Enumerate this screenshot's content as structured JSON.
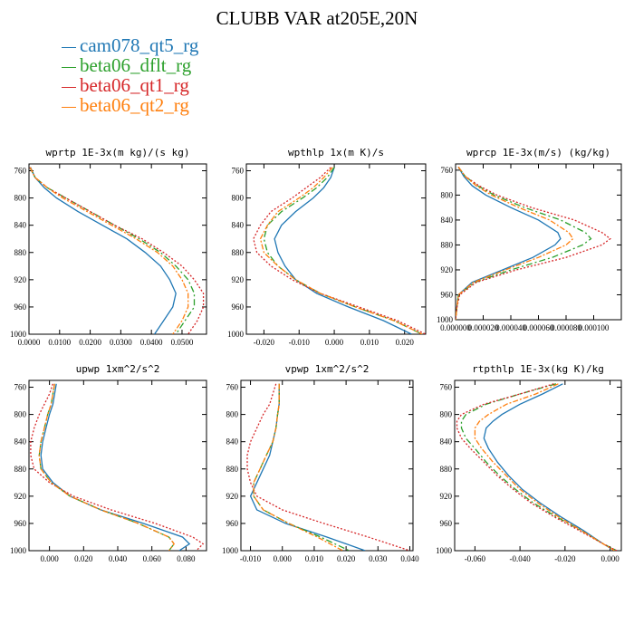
{
  "title": "CLUBB VAR at205E,20N",
  "legend": [
    {
      "name": "cam078_qt5_rg",
      "color": "#1f77b4"
    },
    {
      "name": "beta06_dflt_rg",
      "color": "#2ca02c"
    },
    {
      "name": "beta06_qt1_rg",
      "color": "#d62728"
    },
    {
      "name": "beta06_qt2_rg",
      "color": "#ff7f0e"
    }
  ],
  "chart_data": [
    {
      "type": "line",
      "title": "wprtp  1E-3x(m kg)/(s kg)",
      "xlim": [
        0.0,
        0.058
      ],
      "ylim": [
        1000,
        750
      ],
      "y_reversed": true,
      "xticks": [
        "0.0000",
        "0.0100",
        "0.0200",
        "0.0300",
        "0.0400",
        "0.0500"
      ],
      "xtick_values": [
        0.0,
        0.01,
        0.02,
        0.03,
        0.04,
        0.05
      ],
      "yticks": [
        760,
        800,
        840,
        880,
        920,
        960,
        1000
      ],
      "pressure": [
        755,
        770,
        785,
        800,
        820,
        840,
        860,
        880,
        900,
        920,
        940,
        960,
        980,
        1000
      ],
      "series": [
        {
          "name": "cam078_qt5_rg",
          "values": [
            0.0005,
            0.002,
            0.005,
            0.009,
            0.016,
            0.024,
            0.032,
            0.038,
            0.043,
            0.046,
            0.048,
            0.047,
            0.044,
            0.041
          ]
        },
        {
          "name": "beta06_dflt_rg",
          "values": [
            0.0003,
            0.002,
            0.006,
            0.012,
            0.02,
            0.028,
            0.036,
            0.043,
            0.048,
            0.052,
            0.054,
            0.054,
            0.051,
            0.048
          ]
        },
        {
          "name": "beta06_qt1_rg",
          "values": [
            0.0003,
            0.002,
            0.006,
            0.012,
            0.02,
            0.028,
            0.037,
            0.044,
            0.05,
            0.054,
            0.057,
            0.057,
            0.055,
            0.052
          ]
        },
        {
          "name": "beta06_qt2_rg",
          "values": [
            0.0004,
            0.002,
            0.006,
            0.011,
            0.019,
            0.027,
            0.035,
            0.042,
            0.047,
            0.05,
            0.052,
            0.052,
            0.05,
            0.047
          ]
        }
      ]
    },
    {
      "type": "line",
      "title": "wpthlp  1x(m K)/s",
      "xlim": [
        -0.025,
        0.026
      ],
      "ylim": [
        1000,
        750
      ],
      "y_reversed": true,
      "xticks": [
        "-0.020",
        "-0.010",
        "0.000",
        "0.010",
        "0.020"
      ],
      "xtick_values": [
        -0.02,
        -0.01,
        0.0,
        0.01,
        0.02
      ],
      "yticks": [
        760,
        800,
        840,
        880,
        920,
        960,
        1000
      ],
      "pressure": [
        755,
        770,
        785,
        800,
        820,
        840,
        860,
        880,
        900,
        920,
        940,
        960,
        980,
        1000
      ],
      "series": [
        {
          "name": "cam078_qt5_rg",
          "values": [
            0.0,
            -0.001,
            -0.003,
            -0.006,
            -0.011,
            -0.015,
            -0.017,
            -0.016,
            -0.014,
            -0.011,
            -0.005,
            0.004,
            0.014,
            0.022
          ]
        },
        {
          "name": "beta06_dflt_rg",
          "values": [
            0.0,
            -0.002,
            -0.005,
            -0.009,
            -0.015,
            -0.019,
            -0.02,
            -0.019,
            -0.016,
            -0.011,
            -0.004,
            0.006,
            0.017,
            0.025
          ]
        },
        {
          "name": "beta06_qt1_rg",
          "values": [
            -0.001,
            -0.004,
            -0.008,
            -0.012,
            -0.018,
            -0.021,
            -0.023,
            -0.022,
            -0.018,
            -0.012,
            -0.004,
            0.007,
            0.018,
            0.026
          ]
        },
        {
          "name": "beta06_qt2_rg",
          "values": [
            -0.0005,
            -0.003,
            -0.006,
            -0.01,
            -0.016,
            -0.019,
            -0.021,
            -0.02,
            -0.016,
            -0.011,
            -0.004,
            0.006,
            0.017,
            0.025
          ]
        }
      ]
    },
    {
      "type": "line",
      "title": "wprcp  1E-3x(m/s) (kg/kg)",
      "xlim": [
        0.0,
        0.00012
      ],
      "ylim": [
        1000,
        750
      ],
      "y_reversed": true,
      "xticks": [
        "0.000000",
        "0.000020",
        "0.000040",
        "0.000060",
        "0.000080",
        "0.000100"
      ],
      "xtick_values": [
        0.0,
        2e-05,
        4e-05,
        6e-05,
        8e-05,
        0.0001
      ],
      "yticks": [
        760,
        800,
        840,
        880,
        920,
        960,
        1000
      ],
      "pressure": [
        755,
        770,
        785,
        800,
        820,
        840,
        860,
        870,
        880,
        900,
        920,
        940,
        960,
        980,
        1000
      ],
      "series": [
        {
          "name": "cam078_qt5_rg",
          "values": [
            2e-06,
            6e-06,
            1.2e-05,
            2.2e-05,
            4e-05,
            6e-05,
            7.4e-05,
            7.6e-05,
            7.2e-05,
            5.6e-05,
            3.4e-05,
            1.2e-05,
            2e-06,
            1e-06,
            0.0
          ]
        },
        {
          "name": "beta06_dflt_rg",
          "values": [
            2e-06,
            7e-06,
            1.6e-05,
            2.8e-05,
            5e-05,
            7.6e-05,
            9.4e-05,
            9.8e-05,
            9.2e-05,
            7e-05,
            4e-05,
            1.4e-05,
            2e-06,
            1e-06,
            0.0
          ]
        },
        {
          "name": "beta06_qt1_rg",
          "values": [
            2e-06,
            7e-06,
            1.7e-05,
            3e-05,
            5.5e-05,
            8.6e-05,
            0.000106,
            0.000112,
            0.000106,
            8e-05,
            4.4e-05,
            1.5e-05,
            3e-06,
            1e-06,
            0.0
          ]
        },
        {
          "name": "beta06_qt2_rg",
          "values": [
            2e-06,
            7e-06,
            1.5e-05,
            2.6e-05,
            4.6e-05,
            6.8e-05,
            8.2e-05,
            8.5e-05,
            8e-05,
            6e-05,
            3.6e-05,
            1.3e-05,
            2e-06,
            1e-06,
            0.0
          ]
        }
      ]
    },
    {
      "type": "line",
      "title": "upwp  1xm^2/s^2",
      "xlim": [
        -0.012,
        0.092
      ],
      "ylim": [
        1000,
        750
      ],
      "y_reversed": true,
      "xticks": [
        "0.000",
        "0.020",
        "0.040",
        "0.060",
        "0.080"
      ],
      "xtick_values": [
        0.0,
        0.02,
        0.04,
        0.06,
        0.08
      ],
      "yticks": [
        760,
        800,
        840,
        880,
        920,
        960,
        1000
      ],
      "pressure": [
        755,
        770,
        785,
        800,
        820,
        840,
        860,
        880,
        900,
        920,
        940,
        960,
        980,
        990,
        1000
      ],
      "series": [
        {
          "name": "cam078_qt5_rg",
          "values": [
            0.004,
            0.003,
            0.002,
            0.0,
            -0.002,
            -0.004,
            -0.005,
            -0.004,
            0.002,
            0.012,
            0.03,
            0.055,
            0.078,
            0.082,
            0.076
          ]
        },
        {
          "name": "beta06_dflt_rg",
          "values": [
            0.003,
            0.002,
            0.001,
            -0.001,
            -0.003,
            -0.005,
            -0.006,
            -0.005,
            0.001,
            0.012,
            0.03,
            0.052,
            0.07,
            0.073,
            0.07
          ]
        },
        {
          "name": "beta06_qt1_rg",
          "values": [
            0.002,
            0.0,
            -0.003,
            -0.006,
            -0.009,
            -0.011,
            -0.011,
            -0.009,
            0.0,
            0.014,
            0.036,
            0.062,
            0.084,
            0.09,
            0.086
          ]
        },
        {
          "name": "beta06_qt2_rg",
          "values": [
            0.003,
            0.002,
            0.001,
            -0.001,
            -0.003,
            -0.005,
            -0.006,
            -0.005,
            0.001,
            0.012,
            0.03,
            0.052,
            0.07,
            0.073,
            0.07
          ]
        }
      ]
    },
    {
      "type": "line",
      "title": "vpwp  1xm^2/s^2",
      "xlim": [
        -0.013,
        0.041
      ],
      "ylim": [
        1000,
        750
      ],
      "y_reversed": true,
      "xticks": [
        "-0.010",
        "0.000",
        "0.010",
        "0.020",
        "0.030",
        "0.040"
      ],
      "xtick_values": [
        -0.01,
        0.0,
        0.01,
        0.02,
        0.03,
        0.04
      ],
      "yticks": [
        760,
        800,
        840,
        880,
        920,
        960,
        1000
      ],
      "pressure": [
        755,
        770,
        785,
        800,
        820,
        840,
        860,
        880,
        900,
        920,
        940,
        960,
        980,
        1000
      ],
      "series": [
        {
          "name": "cam078_qt5_rg",
          "values": [
            -0.001,
            -0.001,
            -0.001,
            -0.0015,
            -0.002,
            -0.003,
            -0.004,
            -0.006,
            -0.008,
            -0.01,
            -0.008,
            0.001,
            0.014,
            0.026
          ]
        },
        {
          "name": "beta06_dflt_rg",
          "values": [
            -0.001,
            -0.001,
            -0.001,
            -0.0015,
            -0.002,
            -0.003,
            -0.005,
            -0.007,
            -0.009,
            -0.009,
            -0.006,
            0.002,
            0.012,
            0.021
          ]
        },
        {
          "name": "beta06_qt1_rg",
          "values": [
            -0.002,
            -0.003,
            -0.004,
            -0.006,
            -0.008,
            -0.01,
            -0.011,
            -0.011,
            -0.01,
            -0.008,
            0.0,
            0.013,
            0.027,
            0.04
          ]
        },
        {
          "name": "beta06_qt2_rg",
          "values": [
            -0.001,
            -0.001,
            -0.001,
            -0.0015,
            -0.002,
            -0.003,
            -0.005,
            -0.007,
            -0.009,
            -0.009,
            -0.006,
            0.002,
            0.011,
            0.019
          ]
        }
      ]
    },
    {
      "type": "line",
      "title": "rtpthlp  1E-3x(kg K)/kg",
      "xlim": [
        -0.069,
        0.005
      ],
      "ylim": [
        1000,
        750
      ],
      "y_reversed": true,
      "xticks": [
        "-0.060",
        "-0.040",
        "-0.020",
        "0.000"
      ],
      "xtick_values": [
        -0.06,
        -0.04,
        -0.02,
        0.0
      ],
      "yticks": [
        760,
        800,
        840,
        880,
        920,
        960,
        1000
      ],
      "pressure": [
        755,
        770,
        785,
        800,
        810,
        820,
        835,
        850,
        870,
        890,
        910,
        930,
        950,
        970,
        990,
        1000
      ],
      "series": [
        {
          "name": "cam078_qt5_rg",
          "values": [
            -0.021,
            -0.03,
            -0.04,
            -0.048,
            -0.052,
            -0.055,
            -0.056,
            -0.054,
            -0.05,
            -0.045,
            -0.039,
            -0.031,
            -0.022,
            -0.012,
            -0.003,
            0.002
          ]
        },
        {
          "name": "beta06_dflt_rg",
          "values": [
            -0.024,
            -0.04,
            -0.055,
            -0.064,
            -0.066,
            -0.066,
            -0.064,
            -0.06,
            -0.055,
            -0.049,
            -0.042,
            -0.034,
            -0.024,
            -0.013,
            -0.003,
            0.003
          ]
        },
        {
          "name": "beta06_qt1_rg",
          "values": [
            -0.025,
            -0.04,
            -0.056,
            -0.066,
            -0.068,
            -0.068,
            -0.066,
            -0.062,
            -0.056,
            -0.05,
            -0.043,
            -0.035,
            -0.025,
            -0.014,
            -0.003,
            0.003
          ]
        },
        {
          "name": "beta06_qt2_rg",
          "values": [
            -0.023,
            -0.033,
            -0.046,
            -0.054,
            -0.058,
            -0.06,
            -0.06,
            -0.057,
            -0.052,
            -0.046,
            -0.04,
            -0.032,
            -0.023,
            -0.013,
            -0.003,
            0.002
          ]
        }
      ]
    }
  ]
}
